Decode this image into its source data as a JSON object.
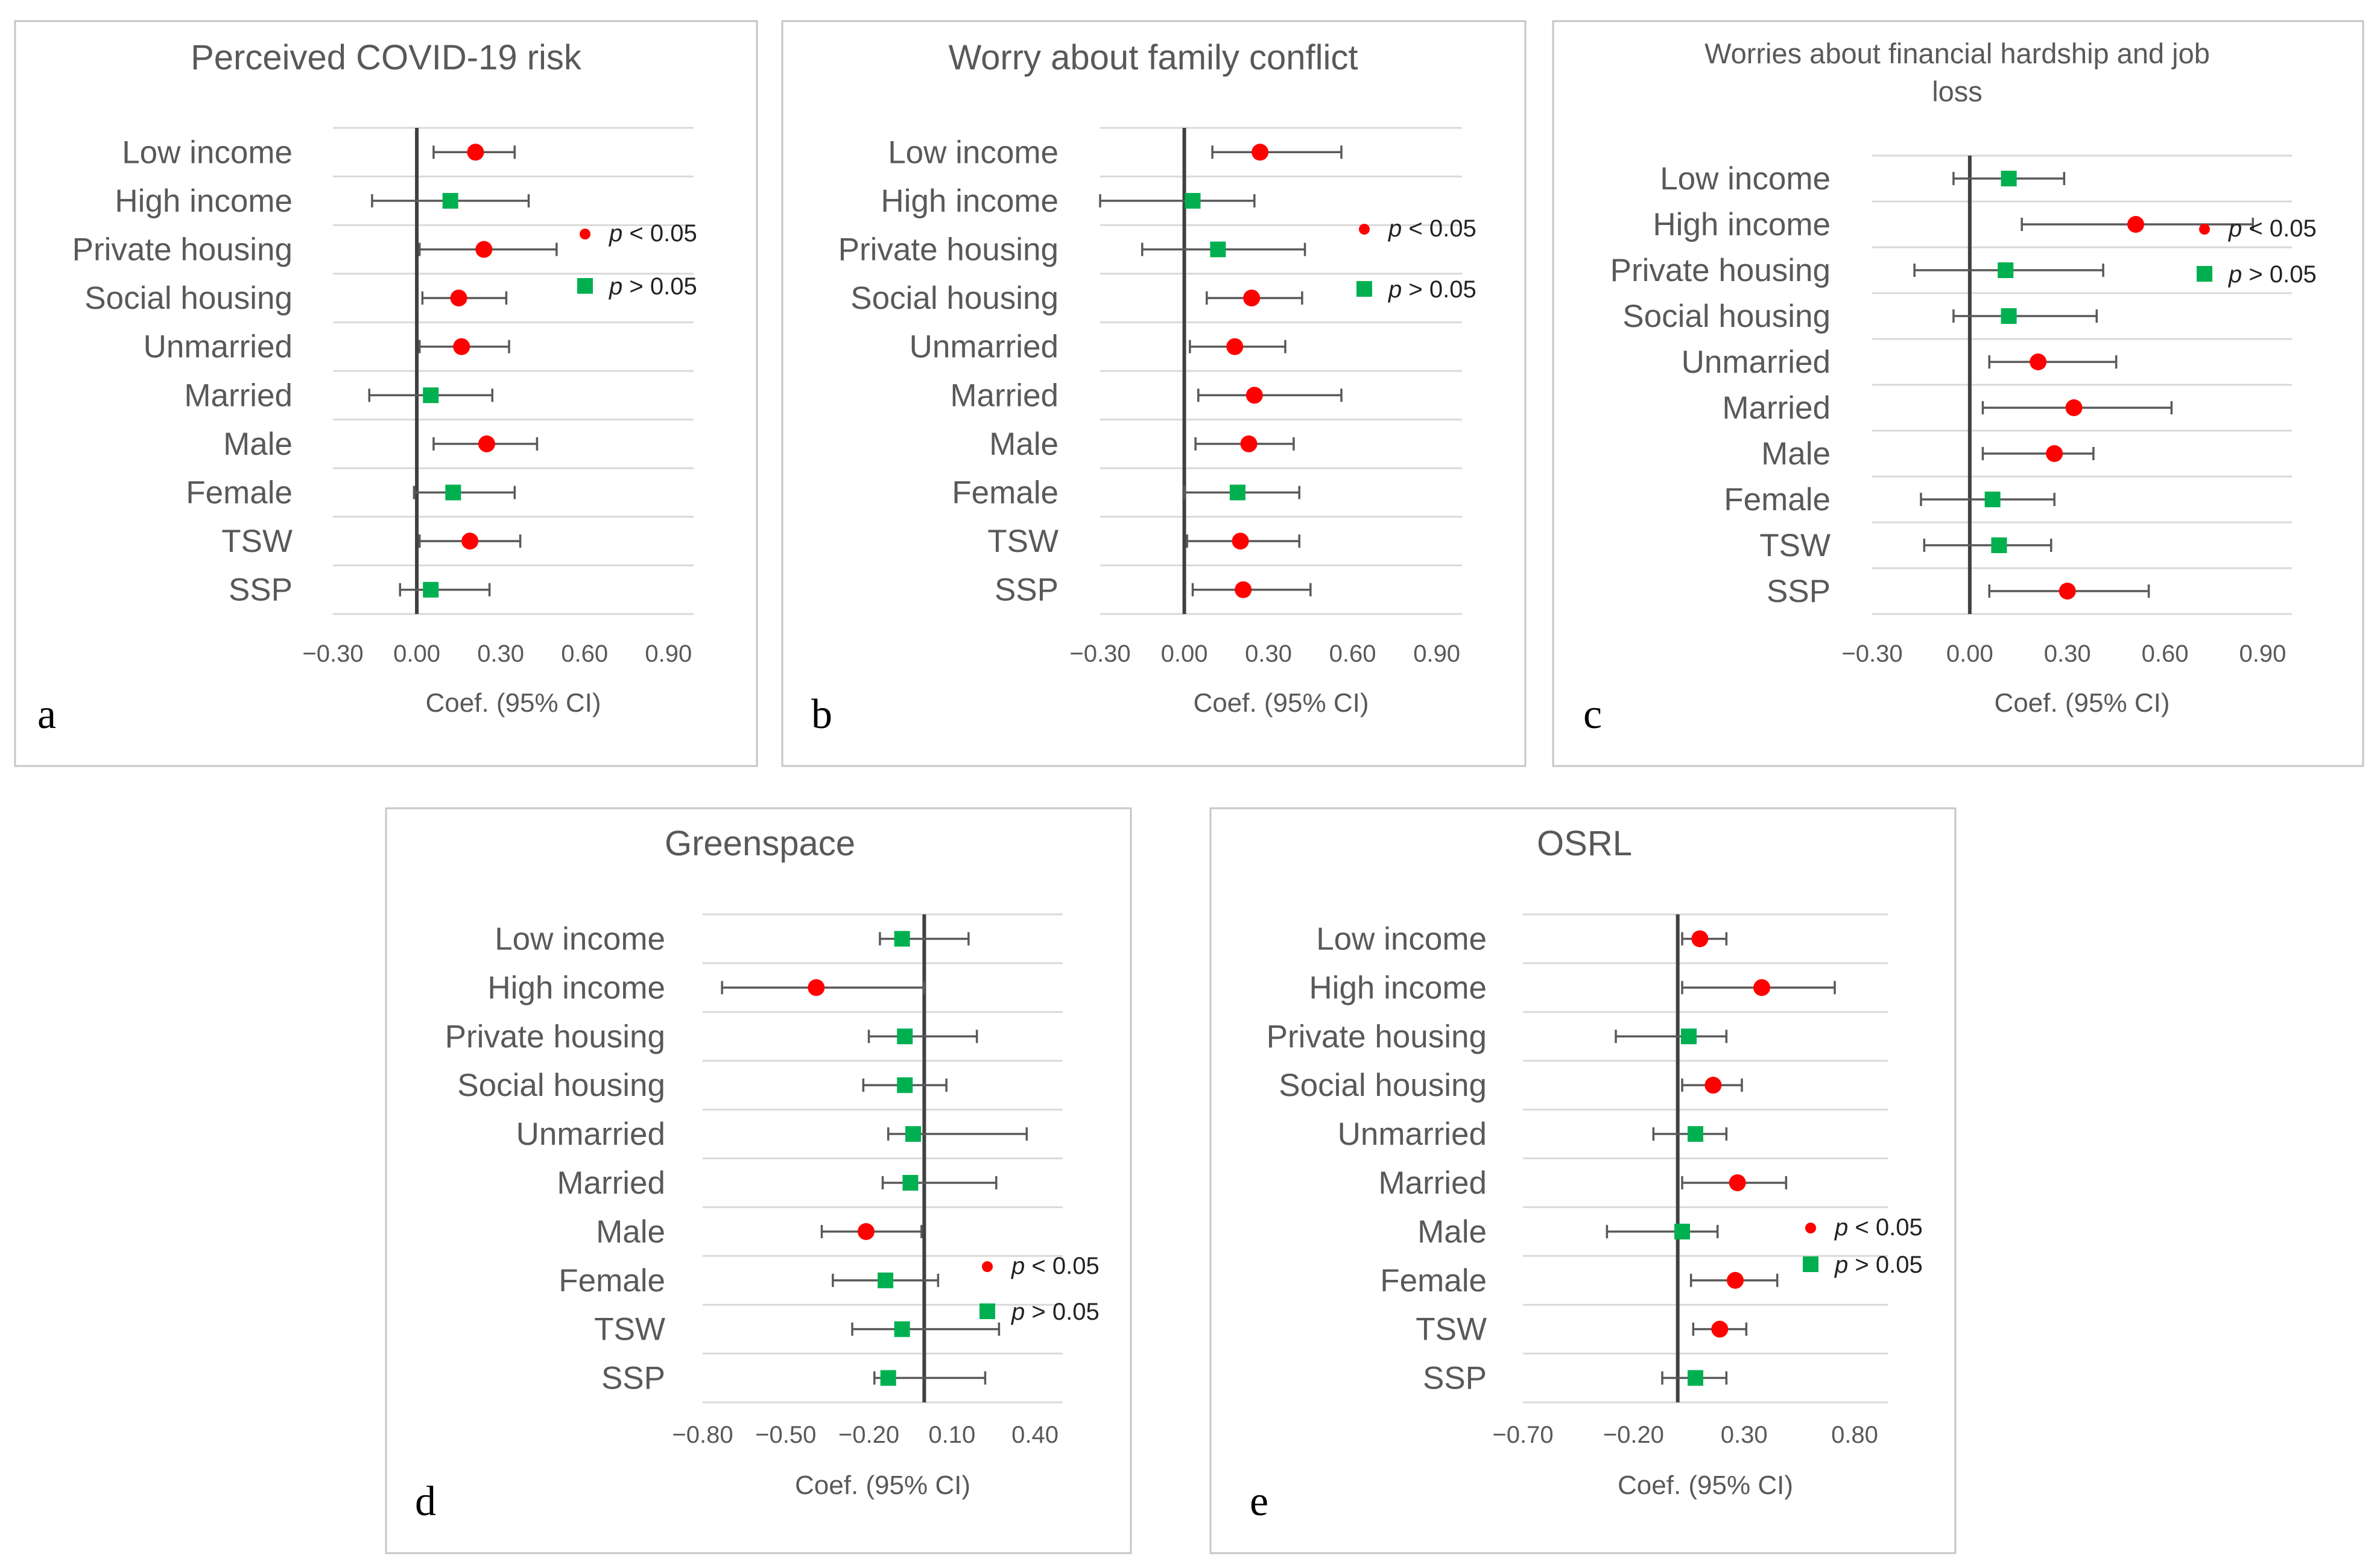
{
  "figure": {
    "colors": {
      "significant": "#ff0000",
      "nonsignificant": "#00b050",
      "zero_line": "#404040",
      "errbar": "#595959"
    },
    "legend": {
      "sig_p": "p",
      "sig_rel": "< 0.05",
      "nonsig_p": "p",
      "nonsig_rel": "> 0.05"
    },
    "categories": [
      "Low income",
      "High income",
      "Private housing",
      "Social housing",
      "Unmarried",
      "Married",
      "Male",
      "Female",
      "TSW",
      "SSP"
    ]
  },
  "chart_data": [
    {
      "type": "forest",
      "panel": "a",
      "title": "Perceived COVID-19 risk",
      "xlabel": "Coef. (95% CI)",
      "xlim": [
        -0.3,
        0.99
      ],
      "ticks": [
        -0.3,
        0.0,
        0.3,
        0.6,
        0.9
      ],
      "tick_labels": [
        "−0.30",
        "0.00",
        "0.30",
        "0.60",
        "0.90"
      ],
      "points": [
        {
          "category": "Low income",
          "coef": 0.21,
          "lo": 0.06,
          "hi": 0.35,
          "significant": true
        },
        {
          "category": "High income",
          "coef": 0.12,
          "lo": -0.16,
          "hi": 0.4,
          "significant": false
        },
        {
          "category": "Private housing",
          "coef": 0.24,
          "lo": 0.01,
          "hi": 0.5,
          "significant": true
        },
        {
          "category": "Social housing",
          "coef": 0.15,
          "lo": 0.02,
          "hi": 0.32,
          "significant": true
        },
        {
          "category": "Unmarried",
          "coef": 0.16,
          "lo": 0.01,
          "hi": 0.33,
          "significant": true
        },
        {
          "category": "Married",
          "coef": 0.05,
          "lo": -0.17,
          "hi": 0.27,
          "significant": false
        },
        {
          "category": "Male",
          "coef": 0.25,
          "lo": 0.06,
          "hi": 0.43,
          "significant": true
        },
        {
          "category": "Female",
          "coef": 0.13,
          "lo": -0.01,
          "hi": 0.35,
          "significant": false
        },
        {
          "category": "TSW",
          "coef": 0.19,
          "lo": 0.01,
          "hi": 0.37,
          "significant": true
        },
        {
          "category": "SSP",
          "coef": 0.05,
          "lo": -0.06,
          "hi": 0.26,
          "significant": false
        }
      ]
    },
    {
      "type": "forest",
      "panel": "b",
      "title": "Worry about family conflict",
      "xlabel": "Coef. (95% CI)",
      "xlim": [
        -0.3,
        0.99
      ],
      "ticks": [
        -0.3,
        0.0,
        0.3,
        0.6,
        0.9
      ],
      "tick_labels": [
        "−0.30",
        "0.00",
        "0.30",
        "0.60",
        "0.90"
      ],
      "points": [
        {
          "category": "Low income",
          "coef": 0.27,
          "lo": 0.1,
          "hi": 0.56,
          "significant": true
        },
        {
          "category": "High income",
          "coef": 0.03,
          "lo": -0.3,
          "hi": 0.25,
          "significant": false
        },
        {
          "category": "Private housing",
          "coef": 0.12,
          "lo": -0.15,
          "hi": 0.43,
          "significant": false
        },
        {
          "category": "Social housing",
          "coef": 0.24,
          "lo": 0.08,
          "hi": 0.42,
          "significant": true
        },
        {
          "category": "Unmarried",
          "coef": 0.18,
          "lo": 0.02,
          "hi": 0.36,
          "significant": true
        },
        {
          "category": "Married",
          "coef": 0.25,
          "lo": 0.05,
          "hi": 0.56,
          "significant": true
        },
        {
          "category": "Male",
          "coef": 0.23,
          "lo": 0.04,
          "hi": 0.39,
          "significant": true
        },
        {
          "category": "Female",
          "coef": 0.19,
          "lo": 0.0,
          "hi": 0.41,
          "significant": false
        },
        {
          "category": "TSW",
          "coef": 0.2,
          "lo": 0.01,
          "hi": 0.41,
          "significant": true
        },
        {
          "category": "SSP",
          "coef": 0.21,
          "lo": 0.03,
          "hi": 0.45,
          "significant": true
        }
      ]
    },
    {
      "type": "forest",
      "panel": "c",
      "title": "Worries about financial hardship and job loss",
      "title_lines": [
        "Worries about financial hardship and job",
        "loss"
      ],
      "xlabel": "Coef. (95% CI)",
      "xlim": [
        -0.3,
        0.99
      ],
      "ticks": [
        -0.3,
        0.0,
        0.3,
        0.6,
        0.9
      ],
      "tick_labels": [
        "−0.30",
        "0.00",
        "0.30",
        "0.60",
        "0.90"
      ],
      "points": [
        {
          "category": "Low income",
          "coef": 0.12,
          "lo": -0.05,
          "hi": 0.29,
          "significant": false
        },
        {
          "category": "High income",
          "coef": 0.51,
          "lo": 0.16,
          "hi": 0.87,
          "significant": true
        },
        {
          "category": "Private housing",
          "coef": 0.11,
          "lo": -0.17,
          "hi": 0.41,
          "significant": false
        },
        {
          "category": "Social housing",
          "coef": 0.12,
          "lo": -0.05,
          "hi": 0.39,
          "significant": false
        },
        {
          "category": "Unmarried",
          "coef": 0.21,
          "lo": 0.06,
          "hi": 0.45,
          "significant": true
        },
        {
          "category": "Married",
          "coef": 0.32,
          "lo": 0.04,
          "hi": 0.62,
          "significant": true
        },
        {
          "category": "Male",
          "coef": 0.26,
          "lo": 0.04,
          "hi": 0.38,
          "significant": true
        },
        {
          "category": "Female",
          "coef": 0.07,
          "lo": -0.15,
          "hi": 0.26,
          "significant": false
        },
        {
          "category": "TSW",
          "coef": 0.09,
          "lo": -0.14,
          "hi": 0.25,
          "significant": false
        },
        {
          "category": "SSP",
          "coef": 0.3,
          "lo": 0.06,
          "hi": 0.55,
          "significant": true
        }
      ]
    },
    {
      "type": "forest",
      "panel": "d",
      "title": "Greenspace",
      "xlabel": "Coef. (95% CI)",
      "xlim": [
        -0.8,
        0.5
      ],
      "ticks": [
        -0.8,
        -0.5,
        -0.2,
        0.1,
        0.4
      ],
      "tick_labels": [
        "−0.80",
        "−0.50",
        "−0.20",
        "0.10",
        "0.40"
      ],
      "points": [
        {
          "category": "Low income",
          "coef": -0.08,
          "lo": -0.16,
          "hi": 0.16,
          "significant": false
        },
        {
          "category": "High income",
          "coef": -0.39,
          "lo": -0.73,
          "hi": 0.0,
          "significant": true
        },
        {
          "category": "Private housing",
          "coef": -0.07,
          "lo": -0.2,
          "hi": 0.19,
          "significant": false
        },
        {
          "category": "Social housing",
          "coef": -0.07,
          "lo": -0.22,
          "hi": 0.08,
          "significant": false
        },
        {
          "category": "Unmarried",
          "coef": -0.04,
          "lo": -0.13,
          "hi": 0.37,
          "significant": false
        },
        {
          "category": "Married",
          "coef": -0.05,
          "lo": -0.15,
          "hi": 0.26,
          "significant": false
        },
        {
          "category": "Male",
          "coef": -0.21,
          "lo": -0.37,
          "hi": -0.01,
          "significant": true
        },
        {
          "category": "Female",
          "coef": -0.14,
          "lo": -0.33,
          "hi": 0.05,
          "significant": false
        },
        {
          "category": "TSW",
          "coef": -0.08,
          "lo": -0.26,
          "hi": 0.27,
          "significant": false
        },
        {
          "category": "SSP",
          "coef": -0.13,
          "lo": -0.18,
          "hi": 0.22,
          "significant": false
        }
      ]
    },
    {
      "type": "forest",
      "panel": "e",
      "title": "OSRL",
      "xlabel": "Coef. (95% CI)",
      "xlim": [
        -0.7,
        0.95
      ],
      "ticks": [
        -0.7,
        -0.2,
        0.3,
        0.8
      ],
      "tick_labels": [
        "−0.70",
        "−0.20",
        "0.30",
        "0.80"
      ],
      "points": [
        {
          "category": "Low income",
          "coef": 0.1,
          "lo": 0.02,
          "hi": 0.22,
          "significant": true
        },
        {
          "category": "High income",
          "coef": 0.38,
          "lo": 0.02,
          "hi": 0.71,
          "significant": true
        },
        {
          "category": "Private housing",
          "coef": 0.05,
          "lo": -0.28,
          "hi": 0.22,
          "significant": false
        },
        {
          "category": "Social housing",
          "coef": 0.16,
          "lo": 0.02,
          "hi": 0.29,
          "significant": true
        },
        {
          "category": "Unmarried",
          "coef": 0.08,
          "lo": -0.11,
          "hi": 0.22,
          "significant": false
        },
        {
          "category": "Married",
          "coef": 0.27,
          "lo": 0.02,
          "hi": 0.49,
          "significant": true
        },
        {
          "category": "Male",
          "coef": 0.02,
          "lo": -0.32,
          "hi": 0.18,
          "significant": false
        },
        {
          "category": "Female",
          "coef": 0.26,
          "lo": 0.06,
          "hi": 0.45,
          "significant": true
        },
        {
          "category": "TSW",
          "coef": 0.19,
          "lo": 0.07,
          "hi": 0.31,
          "significant": true
        },
        {
          "category": "SSP",
          "coef": 0.08,
          "lo": -0.07,
          "hi": 0.22,
          "significant": false
        }
      ]
    }
  ]
}
